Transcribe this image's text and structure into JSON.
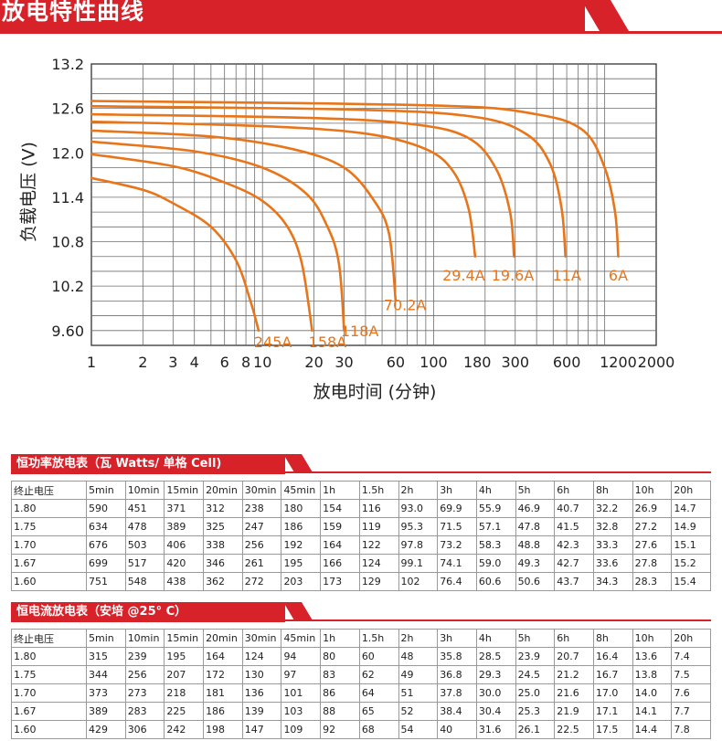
{
  "banner": {
    "title": "放电特性曲线"
  },
  "colors": {
    "accent": "#d7222a",
    "curve": "#e8751a",
    "grid": "#6e6e6e"
  },
  "chart_data": {
    "type": "line",
    "xlabel": "放电时间 (分钟)",
    "ylabel": "负载电压 (V)",
    "x_scale": "log",
    "xlim": [
      1,
      2000
    ],
    "ylim": [
      9.4,
      13.2
    ],
    "x_ticks": [
      "1",
      "2",
      "3",
      "4",
      "6",
      "8",
      "10",
      "20",
      "30",
      "60",
      "100",
      "180",
      "300",
      "600",
      "1200",
      "2000"
    ],
    "x_tick_values": [
      1,
      2,
      3,
      4,
      6,
      8,
      10,
      20,
      30,
      60,
      100,
      180,
      300,
      600,
      1200,
      2000
    ],
    "y_ticks": [
      "13.2",
      "12.6",
      "12.0",
      "11.4",
      "10.8",
      "10.2",
      "9.60"
    ],
    "y_tick_values": [
      13.2,
      12.6,
      12.0,
      11.4,
      10.8,
      10.2,
      9.6
    ],
    "grid": true,
    "series": [
      {
        "name": "245A",
        "label_x": 11.5,
        "label_y": 9.45,
        "points": [
          [
            1,
            11.66
          ],
          [
            2,
            11.5
          ],
          [
            3,
            11.32
          ],
          [
            5,
            11.0
          ],
          [
            7,
            10.55
          ],
          [
            8.5,
            10.0
          ],
          [
            9.5,
            9.6
          ]
        ]
      },
      {
        "name": "158A",
        "label_x": 24,
        "label_y": 9.45,
        "points": [
          [
            1,
            11.98
          ],
          [
            3,
            11.82
          ],
          [
            6,
            11.6
          ],
          [
            10,
            11.35
          ],
          [
            14,
            11.0
          ],
          [
            17,
            10.5
          ],
          [
            19.5,
            9.6
          ]
        ]
      },
      {
        "name": "118A",
        "label_x": 37,
        "label_y": 9.6,
        "points": [
          [
            1,
            12.15
          ],
          [
            4,
            12.02
          ],
          [
            10,
            11.8
          ],
          [
            18,
            11.45
          ],
          [
            24,
            11.0
          ],
          [
            28,
            10.5
          ],
          [
            30,
            9.6
          ]
        ]
      },
      {
        "name": "70.2A",
        "label_x": 68,
        "label_y": 9.95,
        "points": [
          [
            1,
            12.3
          ],
          [
            5,
            12.22
          ],
          [
            15,
            12.05
          ],
          [
            30,
            11.8
          ],
          [
            45,
            11.35
          ],
          [
            55,
            10.9
          ],
          [
            60,
            10.0
          ]
        ]
      },
      {
        "name": "29.4A",
        "label_x": 150,
        "label_y": 10.35,
        "points": [
          [
            1,
            12.42
          ],
          [
            10,
            12.36
          ],
          [
            40,
            12.26
          ],
          [
            90,
            12.05
          ],
          [
            130,
            11.75
          ],
          [
            160,
            11.25
          ],
          [
            175,
            10.6
          ]
        ]
      },
      {
        "name": "19.6A",
        "label_x": 290,
        "label_y": 10.35,
        "points": [
          [
            1,
            12.52
          ],
          [
            20,
            12.47
          ],
          [
            80,
            12.38
          ],
          [
            160,
            12.2
          ],
          [
            230,
            11.8
          ],
          [
            280,
            11.2
          ],
          [
            295,
            10.6
          ]
        ]
      },
      {
        "name": "11A",
        "label_x": 600,
        "label_y": 10.35,
        "points": [
          [
            1,
            12.63
          ],
          [
            40,
            12.58
          ],
          [
            180,
            12.48
          ],
          [
            350,
            12.25
          ],
          [
            480,
            11.85
          ],
          [
            560,
            11.25
          ],
          [
            590,
            10.6
          ]
        ]
      },
      {
        "name": "6A",
        "label_x": 1200,
        "label_y": 10.35,
        "points": [
          [
            1,
            12.7
          ],
          [
            100,
            12.64
          ],
          [
            400,
            12.52
          ],
          [
            750,
            12.3
          ],
          [
            1000,
            11.8
          ],
          [
            1150,
            11.2
          ],
          [
            1200,
            10.6
          ]
        ]
      }
    ]
  },
  "power_table": {
    "title": "恒功率放电表（瓦 Watts/ 单格 Cell)",
    "header": [
      "终止电压",
      "5min",
      "10min",
      "15min",
      "20min",
      "30min",
      "45min",
      "1h",
      "1.5h",
      "2h",
      "3h",
      "4h",
      "5h",
      "6h",
      "8h",
      "10h",
      "20h"
    ],
    "rows": [
      [
        "1.80",
        "590",
        "451",
        "371",
        "312",
        "238",
        "180",
        "154",
        "116",
        "93.0",
        "69.9",
        "55.9",
        "46.9",
        "40.7",
        "32.2",
        "26.9",
        "14.7"
      ],
      [
        "1.75",
        "634",
        "478",
        "389",
        "325",
        "247",
        "186",
        "159",
        "119",
        "95.3",
        "71.5",
        "57.1",
        "47.8",
        "41.5",
        "32.8",
        "27.2",
        "14.9"
      ],
      [
        "1.70",
        "676",
        "503",
        "406",
        "338",
        "256",
        "192",
        "164",
        "122",
        "97.8",
        "73.2",
        "58.3",
        "48.8",
        "42.3",
        "33.3",
        "27.6",
        "15.1"
      ],
      [
        "1.67",
        "699",
        "517",
        "420",
        "346",
        "261",
        "195",
        "166",
        "124",
        "99.1",
        "74.1",
        "59.0",
        "49.3",
        "42.7",
        "33.6",
        "27.8",
        "15.2"
      ],
      [
        "1.60",
        "751",
        "548",
        "438",
        "362",
        "272",
        "203",
        "173",
        "129",
        "102",
        "76.4",
        "60.6",
        "50.6",
        "43.7",
        "34.3",
        "28.3",
        "15.4"
      ]
    ]
  },
  "current_table": {
    "title": "恒电流放电表（安培 @25° C）",
    "header": [
      "终止电压",
      "5min",
      "10min",
      "15min",
      "20min",
      "30min",
      "45min",
      "1h",
      "1.5h",
      "2h",
      "3h",
      "4h",
      "5h",
      "6h",
      "8h",
      "10h",
      "20h"
    ],
    "rows": [
      [
        "1.80",
        "315",
        "239",
        "195",
        "164",
        "124",
        "94",
        "80",
        "60",
        "48",
        "35.8",
        "28.5",
        "23.9",
        "20.7",
        "16.4",
        "13.6",
        "7.4"
      ],
      [
        "1.75",
        "344",
        "256",
        "207",
        "172",
        "130",
        "97",
        "83",
        "62",
        "49",
        "36.8",
        "29.3",
        "24.5",
        "21.2",
        "16.7",
        "13.8",
        "7.5"
      ],
      [
        "1.70",
        "373",
        "273",
        "218",
        "181",
        "136",
        "101",
        "86",
        "64",
        "51",
        "37.8",
        "30.0",
        "25.0",
        "21.6",
        "17.0",
        "14.0",
        "7.6"
      ],
      [
        "1.67",
        "389",
        "283",
        "225",
        "186",
        "139",
        "103",
        "88",
        "65",
        "52",
        "38.4",
        "30.4",
        "25.3",
        "21.9",
        "17.1",
        "14.1",
        "7.7"
      ],
      [
        "1.60",
        "429",
        "306",
        "242",
        "198",
        "147",
        "109",
        "92",
        "68",
        "54",
        "40",
        "31.6",
        "26.1",
        "22.5",
        "17.5",
        "14.4",
        "7.8"
      ]
    ]
  }
}
